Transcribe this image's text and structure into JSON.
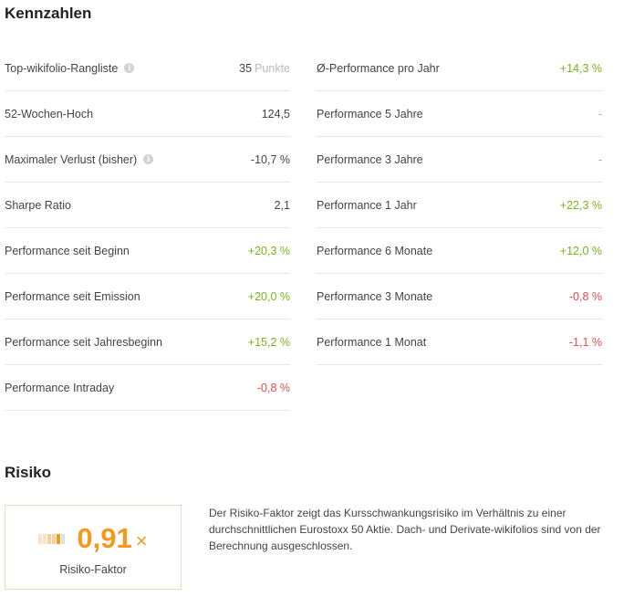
{
  "kennzahlen": {
    "title": "Kennzahlen",
    "left": [
      {
        "label": "Top-wikifolio-Rangliste",
        "info": true,
        "value": "35",
        "unit": "Punkte",
        "tone": "default"
      },
      {
        "label": "52-Wochen-Hoch",
        "info": false,
        "value": "124,5",
        "unit": "",
        "tone": "default"
      },
      {
        "label": "Maximaler Verlust (bisher)",
        "info": true,
        "value": "-10,7 %",
        "unit": "",
        "tone": "default"
      },
      {
        "label": "Sharpe Ratio",
        "info": false,
        "value": "2,1",
        "unit": "",
        "tone": "default"
      },
      {
        "label": "Performance seit Beginn",
        "info": false,
        "value": "+20,3 %",
        "unit": "",
        "tone": "positive"
      },
      {
        "label": "Performance seit Emission",
        "info": false,
        "value": "+20,0 %",
        "unit": "",
        "tone": "positive"
      },
      {
        "label": "Performance seit Jahresbeginn",
        "info": false,
        "value": "+15,2 %",
        "unit": "",
        "tone": "positive"
      },
      {
        "label": "Performance Intraday",
        "info": false,
        "value": "-0,8 %",
        "unit": "",
        "tone": "negative"
      }
    ],
    "right": [
      {
        "label": "Ø-Performance pro Jahr",
        "info": false,
        "value": "+14,3 %",
        "unit": "",
        "tone": "positive"
      },
      {
        "label": "Performance 5 Jahre",
        "info": false,
        "value": "-",
        "unit": "",
        "tone": "neutral"
      },
      {
        "label": "Performance 3 Jahre",
        "info": false,
        "value": "-",
        "unit": "",
        "tone": "neutral"
      },
      {
        "label": "Performance 1 Jahr",
        "info": false,
        "value": "+22,3 %",
        "unit": "",
        "tone": "positive"
      },
      {
        "label": "Performance 6 Monate",
        "info": false,
        "value": "+12,0 %",
        "unit": "",
        "tone": "positive"
      },
      {
        "label": "Performance 3 Monate",
        "info": false,
        "value": "-0,8 %",
        "unit": "",
        "tone": "negative"
      },
      {
        "label": "Performance 1 Monat",
        "info": false,
        "value": "-1,1 %",
        "unit": "",
        "tone": "negative"
      }
    ]
  },
  "risiko": {
    "title": "Risiko",
    "value": "0,91",
    "multiplier": "×",
    "label": "Risiko-Faktor",
    "level": 0.91,
    "level_max": 10,
    "bar_colors": [
      "#fbe2c4",
      "#fbe2c4",
      "#f8cf99",
      "#f8cf99",
      "#f39a1e",
      "#e0e0e0"
    ],
    "description": "Der Risiko-Faktor zeigt das Kursschwankungsrisiko im Verhältnis zu einer durchschnittlichen Eurostoxx 50 Aktie. Dach- und Derivate-wikifolios sind von der Berechnung ausgeschlossen."
  },
  "icons": {
    "info": "info-icon",
    "risk_scale": "risk-scale-icon"
  }
}
